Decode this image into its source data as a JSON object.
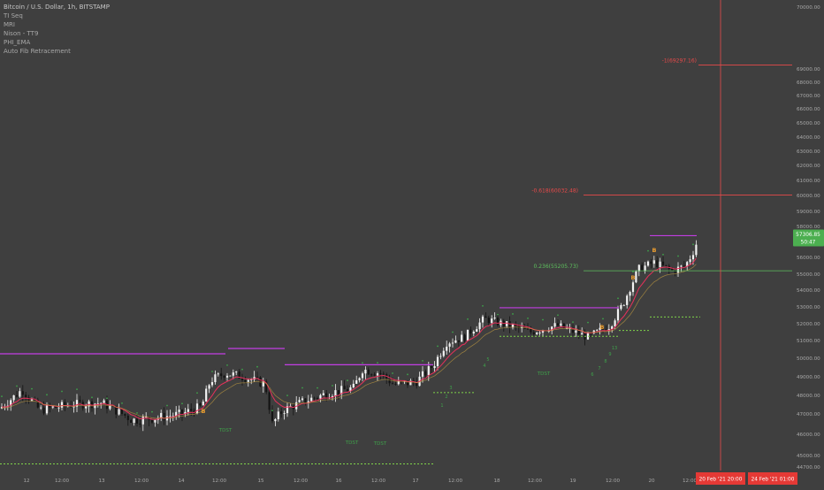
{
  "legend": {
    "title": "Bitcoin / U.S. Dollar, 1h, BITSTAMP",
    "indicators": [
      "TI Seq",
      "MRI",
      "Nison - TT9",
      "PHI_EMA",
      "Auto Fib Retracement"
    ]
  },
  "price_badge": {
    "value": "57306.85",
    "countdown": "50:47"
  },
  "time_badges": [
    "20 Feb '21  20:00",
    "24 Feb '21  01:00"
  ],
  "colors": {
    "background": "#3f3f3f",
    "up_candle": "#f2f2f2",
    "down_candle": "#141414",
    "ema": "#e8305a",
    "resistance": "#c23ee3",
    "fib_red": "#e84a4a",
    "fib_green": "#5ec05e",
    "support_dotted": "#7fd44a",
    "seq_green": "#3fa14a",
    "seq_orange": "#f0a030",
    "axis_text": "#a8a8a8",
    "crosshair": "#e84a4a",
    "badge_green": "#4caf50",
    "badge_red": "#e53935"
  },
  "chart_data": {
    "type": "candlestick",
    "title": "Bitcoin / U.S. Dollar, 1h, BITSTAMP",
    "y_range": [
      44500,
      70500
    ],
    "y_ticks": [
      "70000.00",
      "69000.00",
      "68000.00",
      "67000.00",
      "66000.00",
      "65000.00",
      "64000.00",
      "63000.00",
      "62000.00",
      "61000.00",
      "60000.00",
      "59000.00",
      "58000.00",
      "57000.00",
      "56000.00",
      "55000.00",
      "54000.00",
      "53000.00",
      "52000.00",
      "51000.00",
      "50000.00",
      "49000.00",
      "48000.00",
      "47000.00",
      "46000.00",
      "45000.00",
      "44700.00"
    ],
    "x_labels": [
      "12",
      "12:00",
      "13",
      "12:00",
      "14",
      "12:00",
      "15",
      "12:00",
      "16",
      "12:00",
      "17",
      "12:00",
      "18",
      "12:00",
      "19",
      "12:00",
      "20",
      "12:00"
    ],
    "fib_levels": [
      {
        "label": "-0.618(60032.48)",
        "price": 60032.48
      },
      {
        "label": "0.236(55205.73)",
        "price": 55205.73
      },
      {
        "label": "-1(69297.16)",
        "price": 69297.16
      }
    ],
    "resistance_levels": [
      50250,
      50550,
      49650,
      52950,
      57420
    ],
    "support_levels": [
      44780,
      48150,
      51250,
      52400,
      51600
    ],
    "seq_labels": [
      "B",
      "B",
      "B",
      "B",
      "TDST",
      "TDST",
      "TDST",
      "TDST",
      "1",
      "2",
      "3",
      "4",
      "5",
      "6",
      "7",
      "8",
      "9",
      "13"
    ],
    "last_price": 57306.85
  }
}
